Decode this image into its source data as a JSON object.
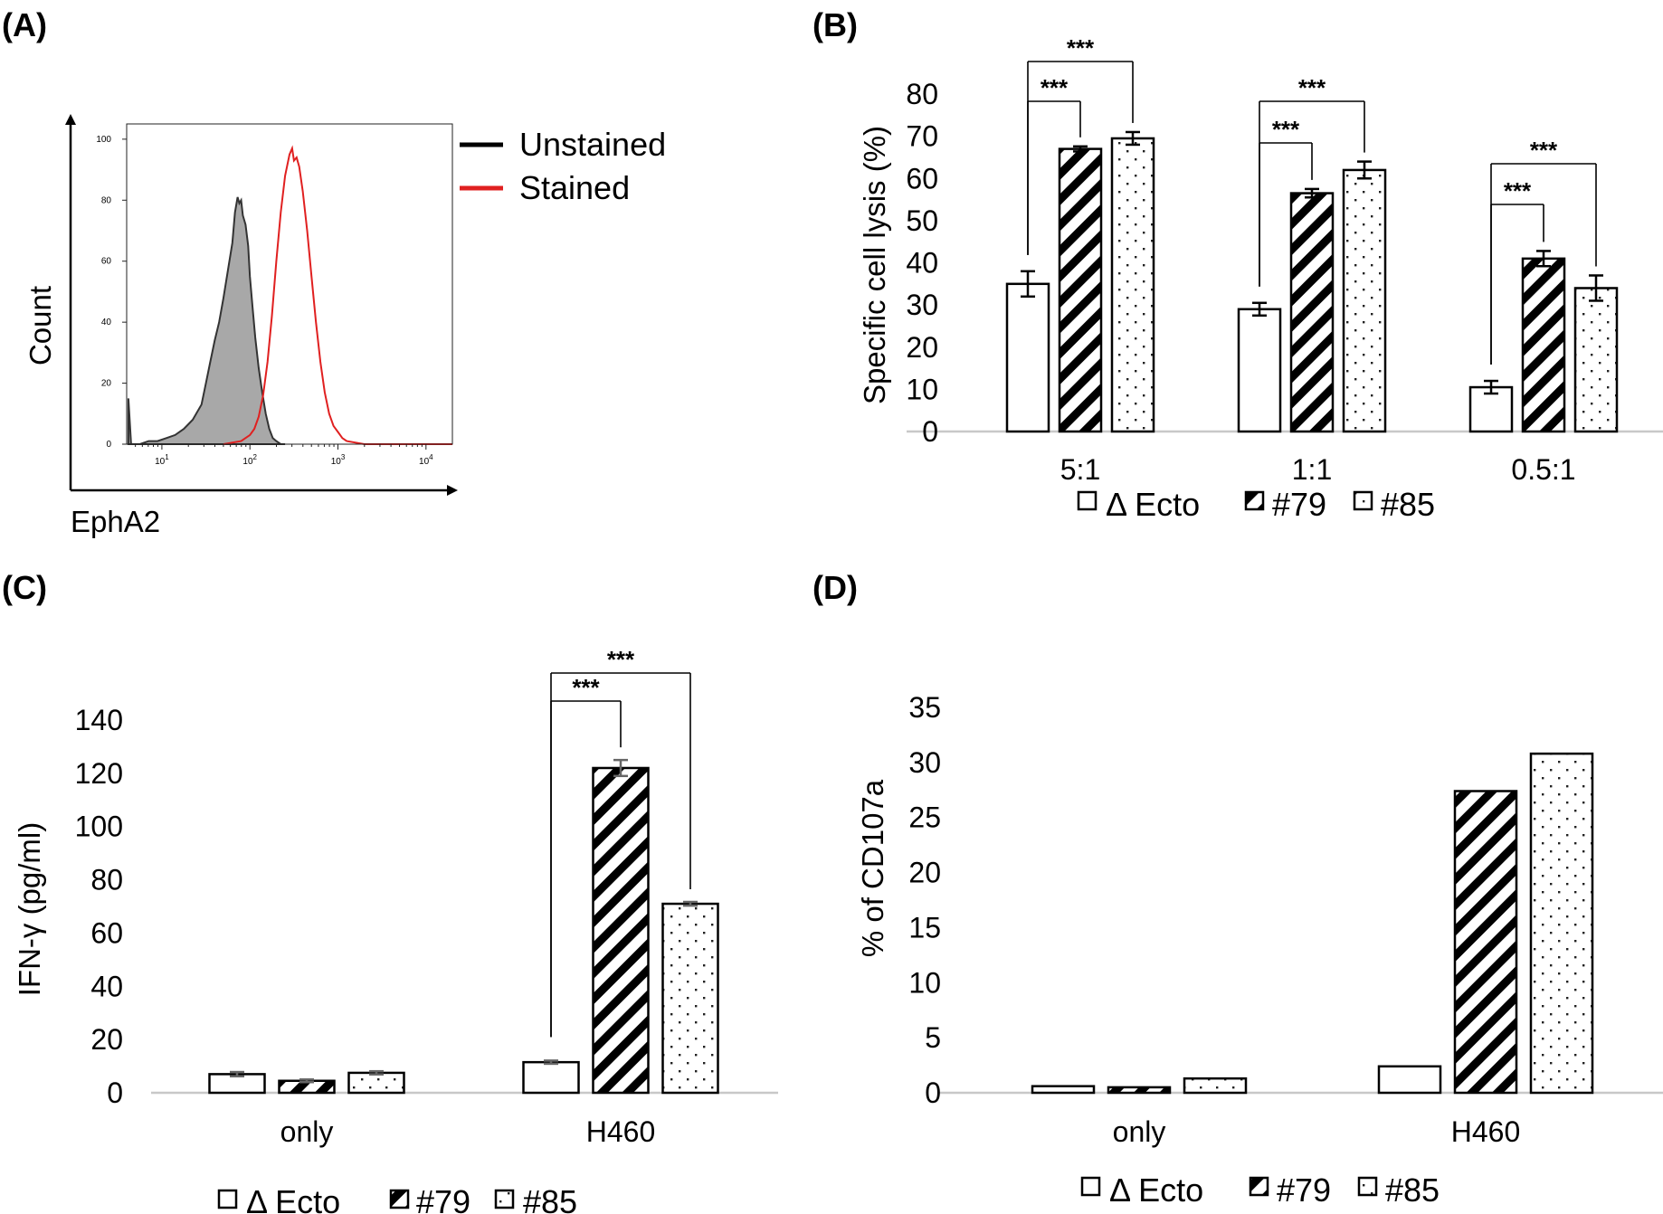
{
  "panels": {
    "A": {
      "label": "(A)"
    },
    "B": {
      "label": "(B)"
    },
    "C": {
      "label": "(C)"
    },
    "D": {
      "label": "(D)"
    }
  },
  "legend_groups": {
    "ecto": "Δ Ecto",
    "c79": "#79",
    "c85": "#85"
  },
  "colors": {
    "stained": "#e02020",
    "unstained_line": "#333333",
    "unstained_fill": "#a8a8a8",
    "axis_light": "#c8c8c8",
    "errorbar_gray": "#666666"
  },
  "chart_data": [
    {
      "id": "A",
      "type": "area",
      "title": "",
      "xlabel": "EphA2",
      "ylabel": "Count",
      "y_ticks": [
        "0",
        "20",
        "40",
        "60",
        "80",
        "100"
      ],
      "x_ticks": [
        {
          "base": "10",
          "exp": "1"
        },
        {
          "base": "10",
          "exp": "2"
        },
        {
          "base": "10",
          "exp": "3"
        },
        {
          "base": "10",
          "exp": "4"
        }
      ],
      "xlim_log10": [
        0.6,
        4.3
      ],
      "ylim": [
        0,
        105
      ],
      "series": [
        {
          "name": "Unstained",
          "x_log10": [
            0.62,
            0.65,
            0.75,
            0.85,
            0.95,
            1.05,
            1.15,
            1.25,
            1.35,
            1.45,
            1.5,
            1.55,
            1.6,
            1.65,
            1.7,
            1.75,
            1.8,
            1.83,
            1.86,
            1.88,
            1.9,
            1.92,
            1.95,
            1.98,
            2.0,
            2.03,
            2.06,
            2.1,
            2.14,
            2.18,
            2.22,
            2.26,
            2.3,
            2.35,
            2.4
          ],
          "y": [
            15,
            0,
            0,
            1,
            1,
            2,
            3,
            5,
            8,
            13,
            20,
            27,
            34,
            40,
            48,
            57,
            66,
            76,
            81,
            79,
            80,
            75,
            72,
            65,
            55,
            45,
            35,
            25,
            17,
            10,
            5,
            2,
            1,
            0,
            0
          ]
        },
        {
          "name": "Stained",
          "x_log10": [
            1.7,
            1.9,
            2.0,
            2.05,
            2.1,
            2.15,
            2.2,
            2.25,
            2.3,
            2.35,
            2.4,
            2.45,
            2.48,
            2.5,
            2.53,
            2.56,
            2.6,
            2.65,
            2.7,
            2.75,
            2.8,
            2.85,
            2.9,
            2.95,
            3.0,
            3.05,
            3.1,
            3.3,
            3.6,
            4.3
          ],
          "y": [
            0,
            1,
            3,
            5,
            9,
            16,
            27,
            42,
            60,
            76,
            88,
            95,
            97,
            93,
            94,
            91,
            83,
            70,
            55,
            40,
            27,
            17,
            10,
            6,
            4,
            2,
            1,
            0,
            0,
            0
          ]
        }
      ],
      "legend": [
        "Unstained",
        "Stained"
      ],
      "legend_position": "top-right"
    },
    {
      "id": "B",
      "type": "bar",
      "ylabel": "Specific cell lysis (%)",
      "ylim": [
        0,
        80
      ],
      "y_ticks": [
        "0",
        "10",
        "20",
        "30",
        "40",
        "50",
        "60",
        "70",
        "80"
      ],
      "categories": [
        "5:1",
        "1:1",
        "0.5:1"
      ],
      "series": [
        {
          "name": "Δ Ecto",
          "values": [
            35,
            29,
            10.5
          ],
          "errors": [
            3,
            1.5,
            1.5
          ]
        },
        {
          "name": "#79",
          "values": [
            67,
            56.5,
            41
          ],
          "errors": [
            0.6,
            1,
            1.8
          ]
        },
        {
          "name": "#85",
          "values": [
            69.5,
            62,
            34
          ],
          "errors": [
            1.5,
            2,
            3
          ]
        }
      ],
      "significance": [
        {
          "group": 0,
          "from": 0,
          "to": 1,
          "label": "***"
        },
        {
          "group": 0,
          "from": 0,
          "to": 2,
          "label": "***"
        },
        {
          "group": 1,
          "from": 0,
          "to": 1,
          "label": "***"
        },
        {
          "group": 1,
          "from": 0,
          "to": 2,
          "label": "***"
        },
        {
          "group": 2,
          "from": 0,
          "to": 1,
          "label": "***"
        },
        {
          "group": 2,
          "from": 0,
          "to": 2,
          "label": "***"
        }
      ],
      "legend_position": "bottom"
    },
    {
      "id": "C",
      "type": "bar",
      "ylabel": "IFN-γ (pg/ml)",
      "ylim": [
        0,
        140
      ],
      "y_ticks": [
        "0",
        "20",
        "40",
        "60",
        "80",
        "100",
        "120",
        "140"
      ],
      "categories": [
        "only",
        "H460"
      ],
      "series": [
        {
          "name": "Δ Ecto",
          "values": [
            7,
            11.5
          ],
          "errors": [
            0.8,
            0.6
          ]
        },
        {
          "name": "#79",
          "values": [
            4.5,
            122
          ],
          "errors": [
            0.5,
            3
          ]
        },
        {
          "name": "#85",
          "values": [
            7.5,
            71
          ],
          "errors": [
            0.6,
            0.7
          ]
        }
      ],
      "significance": [
        {
          "group": 1,
          "from": 0,
          "to": 1,
          "label": "***"
        },
        {
          "group": 1,
          "from": 0,
          "to": 2,
          "label": "***"
        }
      ],
      "legend_position": "bottom"
    },
    {
      "id": "D",
      "type": "bar",
      "ylabel": "% of CD107a",
      "ylim": [
        0,
        35
      ],
      "y_ticks": [
        "0",
        "5",
        "10",
        "15",
        "20",
        "25",
        "30",
        "35"
      ],
      "categories": [
        "only",
        "H460"
      ],
      "series": [
        {
          "name": "Δ Ecto",
          "values": [
            0.6,
            2.4
          ]
        },
        {
          "name": "#79",
          "values": [
            0.5,
            27.4
          ]
        },
        {
          "name": "#85",
          "values": [
            1.3,
            30.8
          ]
        }
      ],
      "legend_position": "bottom"
    }
  ]
}
